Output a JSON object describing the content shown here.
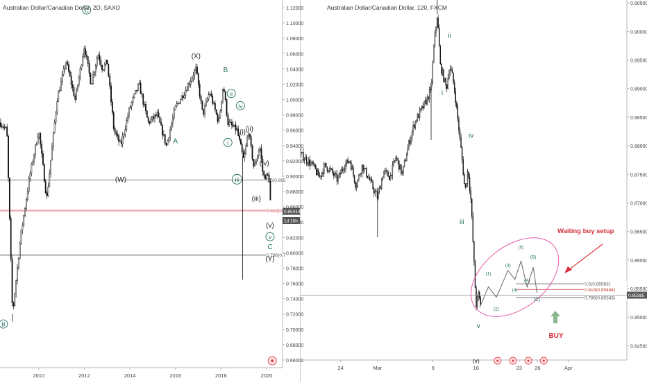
{
  "left_title": "Australian Dollar/Canadian Dollar, 2D, SAXO",
  "right_title": "Australian Dollar/Canadian Dollar, 120, FXCM",
  "chart_data": [
    {
      "type": "candlestick",
      "symbol": "AUDCAD",
      "interval": "2D",
      "source": "SAXO",
      "ylim": [
        0.65,
        1.13
      ],
      "xlim": [
        2008.3,
        2020.7
      ],
      "x_ticks": [
        "2010",
        "2012",
        "2014",
        "2016",
        "2018",
        "2020"
      ],
      "x_tick_values": [
        2010,
        2012,
        2014,
        2016,
        2018,
        2020
      ],
      "y_ticks": [
        "1.12000",
        "1.10000",
        "1.08000",
        "1.06000",
        "1.04000",
        "1.02000",
        "1.00000",
        "0.98000",
        "0.96000",
        "0.94000",
        "0.92000",
        "0.90000",
        "0.88000",
        "0.86000",
        "0.84000",
        "0.82000",
        "0.80000",
        "0.78000",
        "0.76000",
        "0.74000",
        "0.72000",
        "0.70000",
        "0.68000",
        "0.66000"
      ],
      "y_tick_values": [
        1.12,
        1.1,
        1.08,
        1.06,
        1.04,
        1.02,
        1.0,
        0.98,
        0.96,
        0.94,
        0.92,
        0.9,
        0.88,
        0.86,
        0.84,
        0.82,
        0.8,
        0.78,
        0.76,
        0.74,
        0.72,
        0.7,
        0.68,
        0.66
      ],
      "price_path": [
        [
          2008.3,
          0.97
        ],
        [
          2008.6,
          0.96
        ],
        [
          2008.85,
          0.72
        ],
        [
          2009.2,
          0.82
        ],
        [
          2009.6,
          0.9
        ],
        [
          2010.0,
          0.96
        ],
        [
          2010.35,
          0.87
        ],
        [
          2010.8,
          1.0
        ],
        [
          2011.2,
          1.05
        ],
        [
          2011.6,
          1.0
        ],
        [
          2012.0,
          1.07
        ],
        [
          2012.3,
          1.02
        ],
        [
          2012.6,
          1.06
        ],
        [
          2012.8,
          1.04
        ],
        [
          2013.0,
          1.05
        ],
        [
          2013.3,
          0.96
        ],
        [
          2013.6,
          0.94
        ],
        [
          2014.0,
          0.99
        ],
        [
          2014.4,
          1.02
        ],
        [
          2014.8,
          0.97
        ],
        [
          2015.2,
          0.98
        ],
        [
          2015.6,
          0.94
        ],
        [
          2016.0,
          0.99
        ],
        [
          2016.4,
          1.01
        ],
        [
          2016.9,
          1.04
        ],
        [
          2017.2,
          0.98
        ],
        [
          2017.5,
          1.01
        ],
        [
          2017.9,
          0.97
        ],
        [
          2018.1,
          1.02
        ],
        [
          2018.3,
          0.97
        ],
        [
          2018.7,
          0.96
        ],
        [
          2019.0,
          0.92
        ],
        [
          2019.2,
          0.96
        ],
        [
          2019.45,
          0.91
        ],
        [
          2019.7,
          0.94
        ],
        [
          2019.85,
          0.9
        ],
        [
          2020.1,
          0.9
        ],
        [
          2020.2,
          0.85
        ]
      ],
      "spikes": [
        [
          2008.85,
          0.71
        ],
        [
          2018.95,
          0.765
        ]
      ],
      "horizontal_levels": [
        {
          "label": "0.5(0.895",
          "value": 0.895,
          "color": "#777777"
        },
        {
          "label": "0.618(0.8",
          "value": 0.855,
          "color": "#e06a7a"
        },
        {
          "label": "0.786(0.7",
          "value": 0.797,
          "color": "#555555"
        }
      ],
      "price_tags": [
        {
          "label": "0.85414",
          "value": 0.8541,
          "color": "#ffffff",
          "bg": "#555555"
        },
        {
          "label": "1d 16h",
          "value": 0.842,
          "color": "#ffffff",
          "bg": "#555555"
        }
      ],
      "wave_labels": [
        {
          "text": "C",
          "x": 2012.1,
          "y": 1.117,
          "circled": true,
          "color": "#1e6e5c"
        },
        {
          "text": "(X)",
          "x": 2016.9,
          "y": 1.057,
          "circled": false,
          "color": "#222222"
        },
        {
          "text": "B",
          "x": 2018.2,
          "y": 1.039,
          "circled": false,
          "color": "#1e6e5c"
        },
        {
          "text": "ii",
          "x": 2018.45,
          "y": 1.008,
          "circled": true,
          "color": "#1e6e5c"
        },
        {
          "text": "iv",
          "x": 2018.85,
          "y": 0.992,
          "circled": true,
          "color": "#1e6e5c"
        },
        {
          "text": "(ii)",
          "x": 2019.25,
          "y": 0.962,
          "circled": false,
          "color": "#222222"
        },
        {
          "text": "(i)",
          "x": 2018.95,
          "y": 0.958,
          "circled": false,
          "color": "#222222"
        },
        {
          "text": "A",
          "x": 2016.0,
          "y": 0.946,
          "circled": false,
          "color": "#1e6e5c"
        },
        {
          "text": "i",
          "x": 2018.3,
          "y": 0.944,
          "circled": true,
          "color": "#1e6e5c"
        },
        {
          "text": "(iv)",
          "x": 2019.9,
          "y": 0.917,
          "circled": false,
          "color": "#222222"
        },
        {
          "text": "(W)",
          "x": 2013.6,
          "y": 0.896,
          "circled": false,
          "color": "#222222"
        },
        {
          "text": "iii",
          "x": 2018.7,
          "y": 0.896,
          "circled": true,
          "color": "#1e6e5c"
        },
        {
          "text": "(iii)",
          "x": 2019.55,
          "y": 0.871,
          "circled": false,
          "color": "#222222"
        },
        {
          "text": "(v)",
          "x": 2020.15,
          "y": 0.836,
          "circled": false,
          "color": "#222222"
        },
        {
          "text": "v",
          "x": 2020.15,
          "y": 0.821,
          "circled": true,
          "color": "#1e6e5c"
        },
        {
          "text": "C",
          "x": 2020.15,
          "y": 0.808,
          "circled": false,
          "color": "#1e6e5c"
        },
        {
          "text": "(Y)",
          "x": 2020.15,
          "y": 0.792,
          "circled": false,
          "color": "#222222"
        },
        {
          "text": "B",
          "x": 2008.45,
          "y": 0.707,
          "circled": true,
          "color": "#1e6e5c"
        }
      ]
    },
    {
      "type": "candlestick",
      "symbol": "AUDCAD",
      "interval": "120",
      "source": "FXCM",
      "ylim": [
        0.8425,
        0.9055
      ],
      "xlim": [
        -12.5,
        40.5
      ],
      "x_ticks": [
        "24",
        "Mar",
        "9",
        "16",
        "23",
        "26",
        "Apr"
      ],
      "x_tick_values": [
        -6,
        0,
        9,
        16,
        23,
        26,
        31
      ],
      "y_ticks": [
        "0.90500",
        "0.90000",
        "0.89500",
        "0.89000",
        "0.88500",
        "0.88000",
        "0.87500",
        "0.87000",
        "0.86500",
        "0.86000",
        "0.85500",
        "0.85000",
        "0.84500"
      ],
      "y_tick_values": [
        0.905,
        0.9,
        0.895,
        0.89,
        0.885,
        0.88,
        0.875,
        0.87,
        0.865,
        0.86,
        0.855,
        0.85,
        0.845
      ],
      "price_path": [
        [
          -12.5,
          0.8785
        ],
        [
          -11.5,
          0.8775
        ],
        [
          -10.5,
          0.8765
        ],
        [
          -9.5,
          0.8745
        ],
        [
          -8.5,
          0.8765
        ],
        [
          -7.5,
          0.8755
        ],
        [
          -6.5,
          0.874
        ],
        [
          -5.5,
          0.8765
        ],
        [
          -4.5,
          0.8775
        ],
        [
          -3.5,
          0.873
        ],
        [
          -2.5,
          0.8765
        ],
        [
          -1.5,
          0.8745
        ],
        [
          -0.5,
          0.872
        ],
        [
          0.0,
          0.871
        ],
        [
          1.0,
          0.8755
        ],
        [
          2.0,
          0.8745
        ],
        [
          3.0,
          0.878
        ],
        [
          4.0,
          0.875
        ],
        [
          5.0,
          0.88
        ],
        [
          6.0,
          0.884
        ],
        [
          7.0,
          0.886
        ],
        [
          8.0,
          0.888
        ],
        [
          8.7,
          0.89
        ],
        [
          9.2,
          0.898
        ],
        [
          9.7,
          0.903
        ],
        [
          10.2,
          0.894
        ],
        [
          10.7,
          0.892
        ],
        [
          11.2,
          0.89
        ],
        [
          11.7,
          0.894
        ],
        [
          12.2,
          0.892
        ],
        [
          12.7,
          0.888
        ],
        [
          13.2,
          0.883
        ],
        [
          13.7,
          0.878
        ],
        [
          14.2,
          0.872
        ],
        [
          14.7,
          0.876
        ],
        [
          15.2,
          0.87
        ],
        [
          15.6,
          0.861
        ],
        [
          16.0,
          0.852
        ],
        [
          16.4,
          0.854
        ],
        [
          16.8,
          0.852
        ]
      ],
      "spikes": [
        [
          0.0,
          0.864
        ],
        [
          8.7,
          0.881
        ],
        [
          9.7,
          0.9055
        ]
      ],
      "horizontal_levels": [
        {
          "label": "0.5(0.85583)",
          "value": 0.85583,
          "color": "#777777",
          "x_start": 22.5
        },
        {
          "label": "0.618(0.85484)",
          "value": 0.85484,
          "color": "#e06a7a",
          "x_start": 22.5
        },
        {
          "label": "0.786(0.85343)",
          "value": 0.85343,
          "color": "#777777",
          "x_start": 22.5
        }
      ],
      "current_price": {
        "label": "0.85385",
        "value": 0.85385
      },
      "projection_path": [
        [
          16.6,
          0.8517
        ],
        [
          18.0,
          0.8553
        ],
        [
          19.3,
          0.8535
        ],
        [
          21.2,
          0.8582
        ],
        [
          22.3,
          0.8566
        ],
        [
          23.3,
          0.8598
        ],
        [
          24.3,
          0.8553
        ],
        [
          25.3,
          0.8587
        ],
        [
          25.9,
          0.8543
        ]
      ],
      "projection_labels": [
        {
          "text": "(1)",
          "x": 18.0,
          "y": 0.8574
        },
        {
          "text": "(2)",
          "x": 19.3,
          "y": 0.8512
        },
        {
          "text": "(3)",
          "x": 21.2,
          "y": 0.8588
        },
        {
          "text": "(4)",
          "x": 22.3,
          "y": 0.8545
        },
        {
          "text": "(5)",
          "x": 23.3,
          "y": 0.862
        },
        {
          "text": "(A)",
          "x": 24.3,
          "y": 0.8562
        },
        {
          "text": "(B)",
          "x": 25.3,
          "y": 0.8603
        },
        {
          "text": "(C)",
          "x": 25.9,
          "y": 0.8528
        }
      ],
      "wave_labels": [
        {
          "text": "ii",
          "x": 11.7,
          "y": 0.8993,
          "color": "#1e6e5c"
        },
        {
          "text": "i",
          "x": 10.5,
          "y": 0.8893,
          "color": "#1e6e5c"
        },
        {
          "text": "iv",
          "x": 15.2,
          "y": 0.8818,
          "color": "#1e6e5c"
        },
        {
          "text": "iii",
          "x": 13.7,
          "y": 0.8667,
          "color": "#1e6e5c"
        },
        {
          "text": "v",
          "x": 16.4,
          "y": 0.8485,
          "color": "#1e6e5c"
        }
      ],
      "annotation": "Waiting buy setup",
      "buy_label": "BUY",
      "bottom_label": "(v)"
    }
  ]
}
